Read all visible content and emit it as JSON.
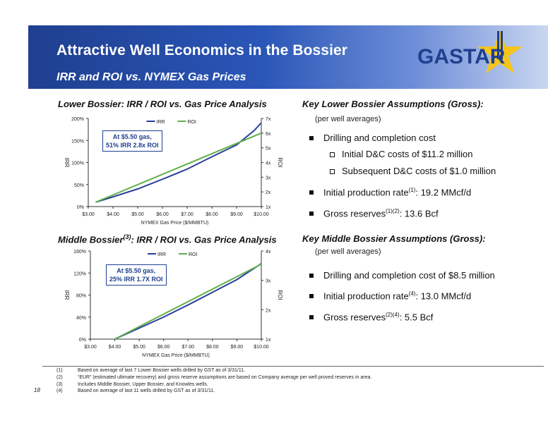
{
  "header": {
    "title": "Attractive Well Economics in the Bossier",
    "subtitle": "IRR and ROI vs. NYMEX Gas Prices",
    "logo_text": "GASTAR"
  },
  "left": {
    "lower_title": "Lower Bossier: IRR / ROI  vs. Gas Price Analysis",
    "middle_title_a": "Middle Bossier",
    "middle_title_sup": "(3)",
    "middle_title_b": ": IRR / ROI  vs. Gas Price Analysis",
    "lower_callout_1": "At $5.50 gas,",
    "lower_callout_2": "51% IRR 2.8x ROI",
    "middle_callout_1": "At $5.50 gas,",
    "middle_callout_2": "25% IRR 1.7X ROI"
  },
  "right": {
    "lower_heading": "Key Lower Bossier Assumptions (Gross):",
    "lower_per": "(per well averages)",
    "lower_b1": "Drilling and completion cost",
    "lower_s1": "Initial D&C costs of $11.2 million",
    "lower_s2": "Subsequent D&C costs of $1.0 million",
    "lower_b2_a": "Initial production rate",
    "lower_b2_sup": "(1)",
    "lower_b2_b": ": 19.2 MMcf/d",
    "lower_b3_a": "Gross reserves",
    "lower_b3_sup": "(1)(2)",
    "lower_b3_b": ": 13.6 Bcf",
    "middle_heading": "Key Middle Bossier Assumptions (Gross):",
    "middle_per": "(per well averages)",
    "middle_b1": "Drilling and completion cost of $8.5 million",
    "middle_b2_a": "Initial production rate",
    "middle_b2_sup": "(4)",
    "middle_b2_b": ": 13.0 MMcf/d",
    "middle_b3_a": "Gross reserves",
    "middle_b3_sup": "(2)(4)",
    "middle_b3_b": ": 5.5 Bcf"
  },
  "footnotes": [
    {
      "num": "(1)",
      "text": "Based on average of last 7 Lower Bossier wells drilled by GST as of 3/31/11."
    },
    {
      "num": "(2)",
      "text": "“EUR” (estimated ultimate recovery) and gross reserve assumptions are based on Company average per well proved reserves in area."
    },
    {
      "num": "(3)",
      "text": "Includes Middle Bossier, Upper Bossier, and Knowles wells."
    },
    {
      "num": "(4)",
      "text": "Based on average of last 11 wells drilled by GST as of 3/31/11."
    }
  ],
  "page_number": "18",
  "colors": {
    "irr": "#2b3f9a",
    "roi": "#5fb04a",
    "brand": "#1f3f8f"
  },
  "chart_data": [
    {
      "type": "line",
      "title": "Lower Bossier: IRR / ROI  vs. Gas Price Analysis",
      "xlabel": "NYMEX Gas Price ($/MMBTU)",
      "ylabel": "IRR",
      "y2label": "ROI",
      "x": [
        3,
        4,
        5,
        6,
        7,
        8,
        9,
        10
      ],
      "x_ticks": [
        "$3.00",
        "$4.00",
        "$5.00",
        "$6.00",
        "$7.00",
        "$8.00",
        "$9.00",
        "$10.00"
      ],
      "y_ticks": [
        "0%",
        "50%",
        "100%",
        "150%",
        "200%"
      ],
      "y2_ticks": [
        "1x",
        "2x",
        "3x",
        "4x",
        "5x",
        "6x",
        "7x"
      ],
      "ylim": [
        0,
        200
      ],
      "y2lim": [
        1,
        7
      ],
      "legend": "top",
      "series": [
        {
          "name": "IRR",
          "axis": "left",
          "x": [
            3.3,
            4,
            5,
            6,
            7,
            8,
            9,
            9.7,
            10
          ],
          "values": [
            10,
            22,
            40,
            62,
            85,
            113,
            140,
            172,
            190
          ]
        },
        {
          "name": "ROI",
          "axis": "right",
          "x": [
            3.3,
            10
          ],
          "values": [
            1.3,
            6.0
          ]
        }
      ]
    },
    {
      "type": "line",
      "title": "Middle Bossier(3): IRR / ROI  vs. Gas Price Analysis",
      "xlabel": "NYMEX Gas Price ($/MMBTU)",
      "ylabel": "IRR",
      "y2label": "ROI",
      "x": [
        3,
        4,
        5,
        6,
        7,
        8,
        9,
        10
      ],
      "x_ticks": [
        "$3.00",
        "$4.00",
        "$5.00",
        "$6.00",
        "$7.00",
        "$8.00",
        "$9.00",
        "$10.00"
      ],
      "y_ticks": [
        "0%",
        "40%",
        "80%",
        "120%",
        "160%"
      ],
      "y2_ticks": [
        "1x",
        "2x",
        "3x",
        "4x"
      ],
      "ylim": [
        0,
        160
      ],
      "y2lim": [
        1,
        4
      ],
      "legend": "top",
      "series": [
        {
          "name": "IRR",
          "axis": "left",
          "x": [
            4.0,
            5,
            6,
            7,
            8,
            9,
            10
          ],
          "values": [
            0,
            20,
            40,
            62,
            85,
            108,
            137
          ]
        },
        {
          "name": "ROI",
          "axis": "right",
          "x": [
            4.0,
            10
          ],
          "values": [
            1.0,
            3.55
          ]
        }
      ]
    }
  ]
}
